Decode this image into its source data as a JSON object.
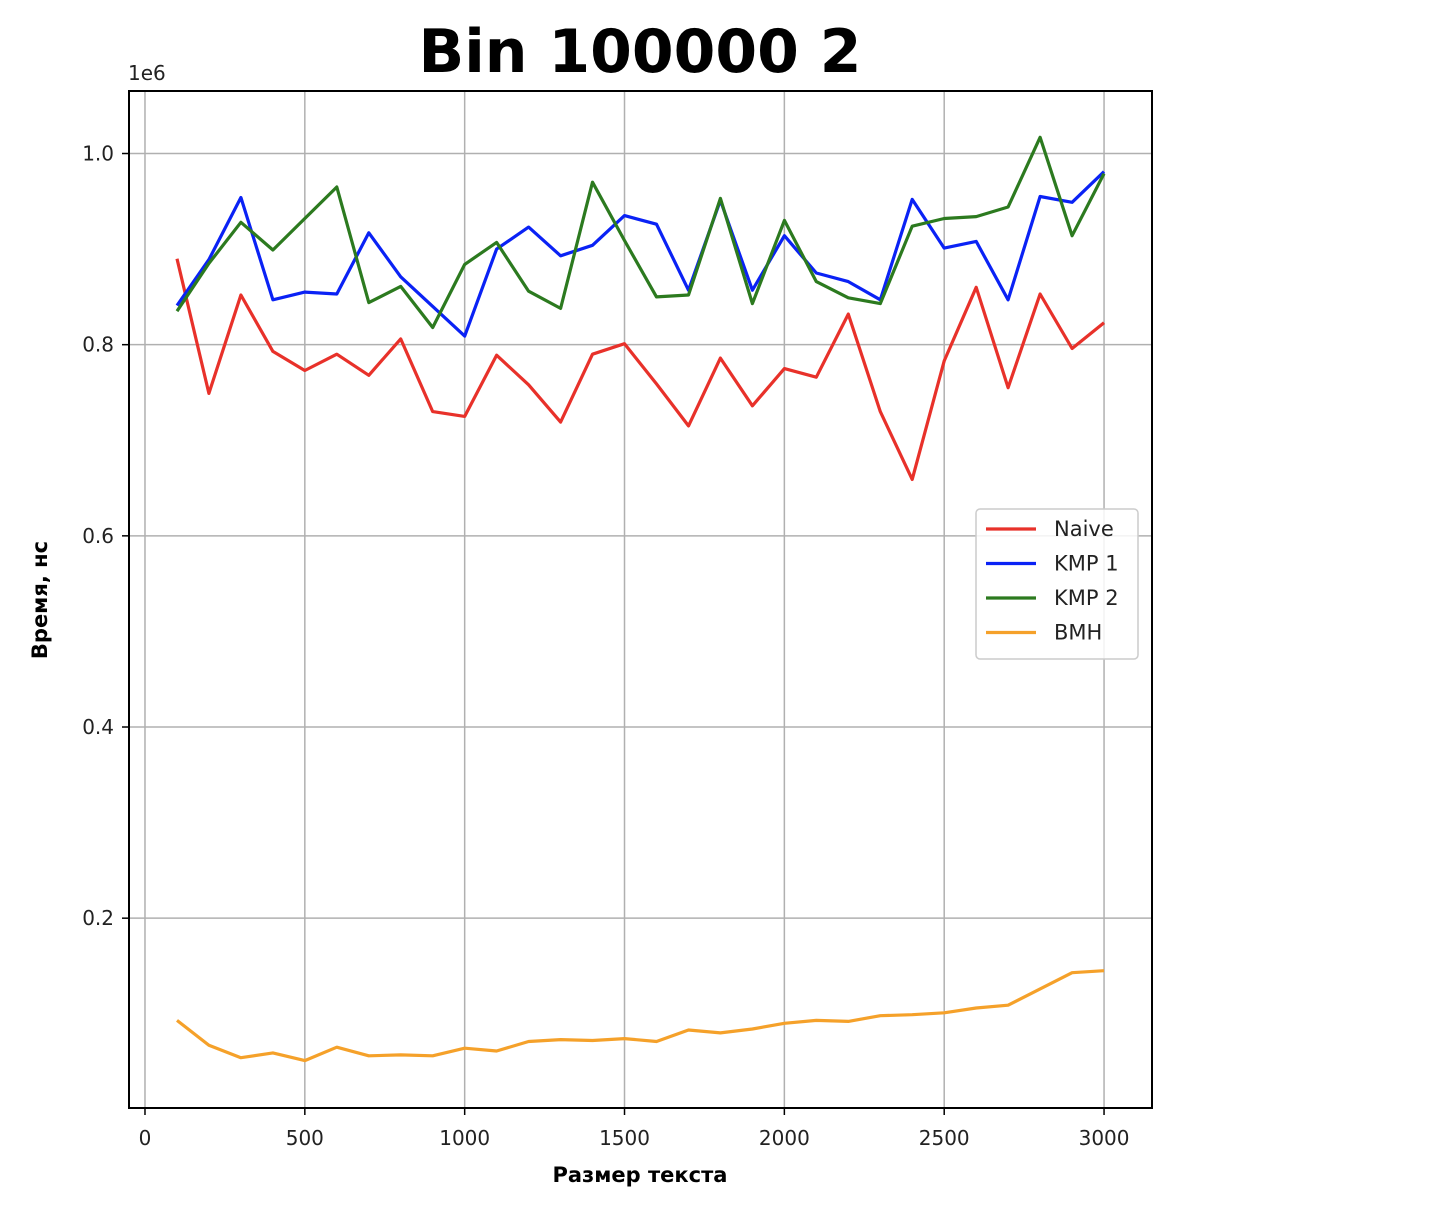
{
  "chart_data": {
    "type": "line",
    "title": "Bin 100000 2",
    "xlabel": "Размер текста",
    "ylabel": "Время, нс",
    "offset_text": "1e6",
    "x": [
      100,
      200,
      300,
      400,
      500,
      600,
      700,
      800,
      900,
      1000,
      1100,
      1200,
      1300,
      1400,
      1500,
      1600,
      1700,
      1800,
      1900,
      2000,
      2100,
      2200,
      2300,
      2400,
      2500,
      2600,
      2700,
      2800,
      2900,
      3000
    ],
    "xlim": [
      -50,
      3150
    ],
    "ylim": [
      0.0014,
      1.0654
    ],
    "x_ticks": [
      0,
      500,
      1000,
      1500,
      2000,
      2500,
      3000
    ],
    "x_tick_labels": [
      "0",
      "500",
      "1000",
      "1500",
      "2000",
      "2500",
      "3000"
    ],
    "y_ticks": [
      0.2,
      0.4,
      0.6,
      0.8,
      1.0
    ],
    "y_tick_labels": [
      "0.2",
      "0.4",
      "0.6",
      "0.8",
      "1.0"
    ],
    "grid": true,
    "legend_position": "center-right",
    "series": [
      {
        "name": "Naive",
        "color": "#e8312a",
        "values": [
          0.89,
          0.749,
          0.852,
          0.793,
          0.773,
          0.79,
          0.768,
          0.806,
          0.73,
          0.725,
          0.789,
          0.758,
          0.719,
          0.79,
          0.801,
          0.759,
          0.715,
          0.786,
          0.736,
          0.775,
          0.766,
          0.832,
          0.73,
          0.659,
          0.783,
          0.86,
          0.755,
          0.853,
          0.796,
          0.823
        ]
      },
      {
        "name": "KMP 1",
        "color": "#0a22f5",
        "values": [
          0.841,
          0.889,
          0.954,
          0.847,
          0.855,
          0.853,
          0.917,
          0.871,
          0.84,
          0.809,
          0.9,
          0.923,
          0.893,
          0.904,
          0.935,
          0.926,
          0.857,
          0.951,
          0.857,
          0.914,
          0.875,
          0.866,
          0.847,
          0.952,
          0.901,
          0.908,
          0.847,
          0.955,
          0.949,
          0.981
        ]
      },
      {
        "name": "KMP 2",
        "color": "#2c7a1f",
        "values": [
          0.835,
          0.885,
          0.928,
          0.899,
          0.932,
          0.965,
          0.844,
          0.861,
          0.818,
          0.884,
          0.907,
          0.856,
          0.838,
          0.97,
          0.909,
          0.85,
          0.852,
          0.953,
          0.843,
          0.93,
          0.866,
          0.849,
          0.843,
          0.924,
          0.932,
          0.934,
          0.944,
          1.017,
          0.914,
          0.979
        ]
      },
      {
        "name": "BMH",
        "color": "#f5a12a",
        "values": [
          0.093,
          0.067,
          0.054,
          0.059,
          0.051,
          0.065,
          0.056,
          0.057,
          0.056,
          0.064,
          0.061,
          0.071,
          0.073,
          0.072,
          0.074,
          0.071,
          0.083,
          0.08,
          0.084,
          0.09,
          0.093,
          0.092,
          0.098,
          0.099,
          0.101,
          0.106,
          0.109,
          0.126,
          0.143,
          0.145
        ]
      }
    ]
  }
}
